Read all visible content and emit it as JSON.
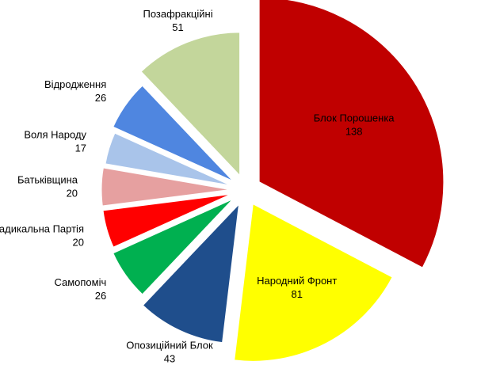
{
  "chart_data": {
    "type": "pie",
    "categories": [
      "Блок Порошенка",
      "Народний Фронт",
      "Опозиційний Блок",
      "Самопоміч",
      "Радикальна Партія",
      "Батьківщина",
      "Воля Народу",
      "Відродження",
      "Позафракційні"
    ],
    "values": [
      138,
      81,
      43,
      26,
      20,
      20,
      17,
      26,
      51
    ],
    "colors": [
      "#c00000",
      "#ffff00",
      "#1f4e8c",
      "#00b050",
      "#ff0000",
      "#e6a0a0",
      "#a9c4ea",
      "#4f86e0",
      "#c3d69b"
    ]
  }
}
